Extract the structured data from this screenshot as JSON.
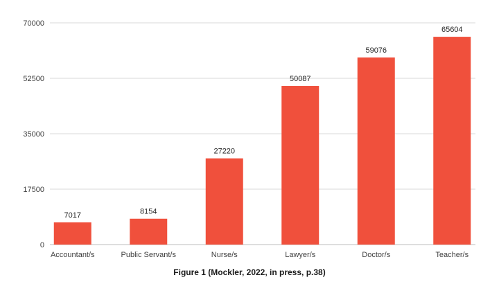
{
  "chart_data": {
    "type": "bar",
    "categories": [
      "Accountant/s",
      "Public Servant/s",
      "Nurse/s",
      "Lawyer/s",
      "Doctor/s",
      "Teacher/s"
    ],
    "values": [
      7017,
      8154,
      27220,
      50087,
      59076,
      65604
    ],
    "data_labels": [
      "7017",
      "8154",
      "27220",
      "50087",
      "59076",
      "65604"
    ],
    "y_ticks": [
      0,
      17500,
      35000,
      52500,
      70000
    ],
    "y_tick_labels": [
      "0",
      "17500",
      "35000",
      "52500",
      "70000"
    ],
    "ylim": [
      0,
      70000
    ],
    "grid": true,
    "legend": "none",
    "bar_color": "#f0503c",
    "title": "",
    "xlabel": "",
    "ylabel": ""
  },
  "caption": "Figure 1 (Mockler, 2022, in press, p.38)"
}
